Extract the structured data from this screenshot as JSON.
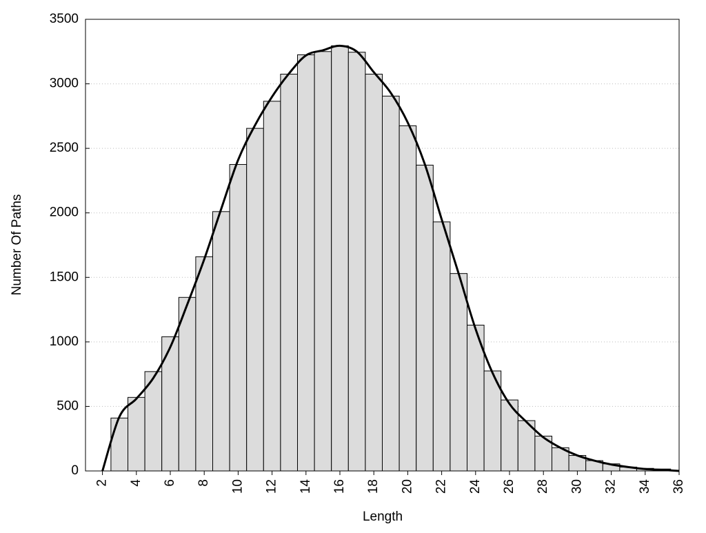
{
  "chart_data": {
    "type": "histogram",
    "x_label": "Length",
    "y_label": "Number Of Paths",
    "bins": [
      2.5,
      3.5,
      4.5,
      5.5,
      6.5,
      7.5,
      8.5,
      9.5,
      10.5,
      11.5,
      12.5,
      13.5,
      14.5,
      15.5,
      16.5,
      17.5,
      18.5,
      19.5,
      20.5,
      21.5,
      22.5,
      23.5,
      24.5,
      25.5,
      26.5,
      27.5,
      28.5,
      29.5,
      30.5,
      31.5,
      32.5,
      33.5,
      34.5,
      35.5
    ],
    "values": [
      410,
      570,
      770,
      1040,
      1345,
      1660,
      2010,
      2375,
      2655,
      2865,
      3075,
      3225,
      3250,
      3295,
      3245,
      3075,
      2905,
      2675,
      2370,
      1930,
      1530,
      1130,
      775,
      550,
      390,
      270,
      180,
      120,
      80,
      55,
      30,
      20,
      15
    ],
    "color": "#dcdcdc",
    "curve": {
      "color": "#000000",
      "x": [
        2,
        3,
        4,
        5,
        6,
        7,
        8,
        9,
        10,
        11,
        12,
        13,
        14,
        15,
        16,
        17,
        18,
        19,
        20,
        21,
        22,
        23,
        24,
        25,
        26,
        27,
        28,
        29,
        30,
        31,
        32,
        33,
        34,
        35,
        36
      ],
      "values": [
        0,
        420,
        560,
        720,
        960,
        1290,
        1640,
        2030,
        2410,
        2680,
        2900,
        3080,
        3220,
        3260,
        3295,
        3250,
        3090,
        2930,
        2700,
        2380,
        1950,
        1530,
        1100,
        760,
        520,
        380,
        260,
        180,
        120,
        80,
        50,
        30,
        15,
        8,
        0
      ]
    },
    "xlim": [
      1,
      36
    ],
    "ylim": [
      0,
      3500
    ],
    "xticks": [
      2,
      4,
      6,
      8,
      10,
      12,
      14,
      16,
      18,
      20,
      22,
      24,
      26,
      28,
      30,
      32,
      34,
      36
    ],
    "yticks": [
      0,
      500,
      1000,
      1500,
      2000,
      2500,
      3000,
      3500
    ],
    "grid": true
  }
}
